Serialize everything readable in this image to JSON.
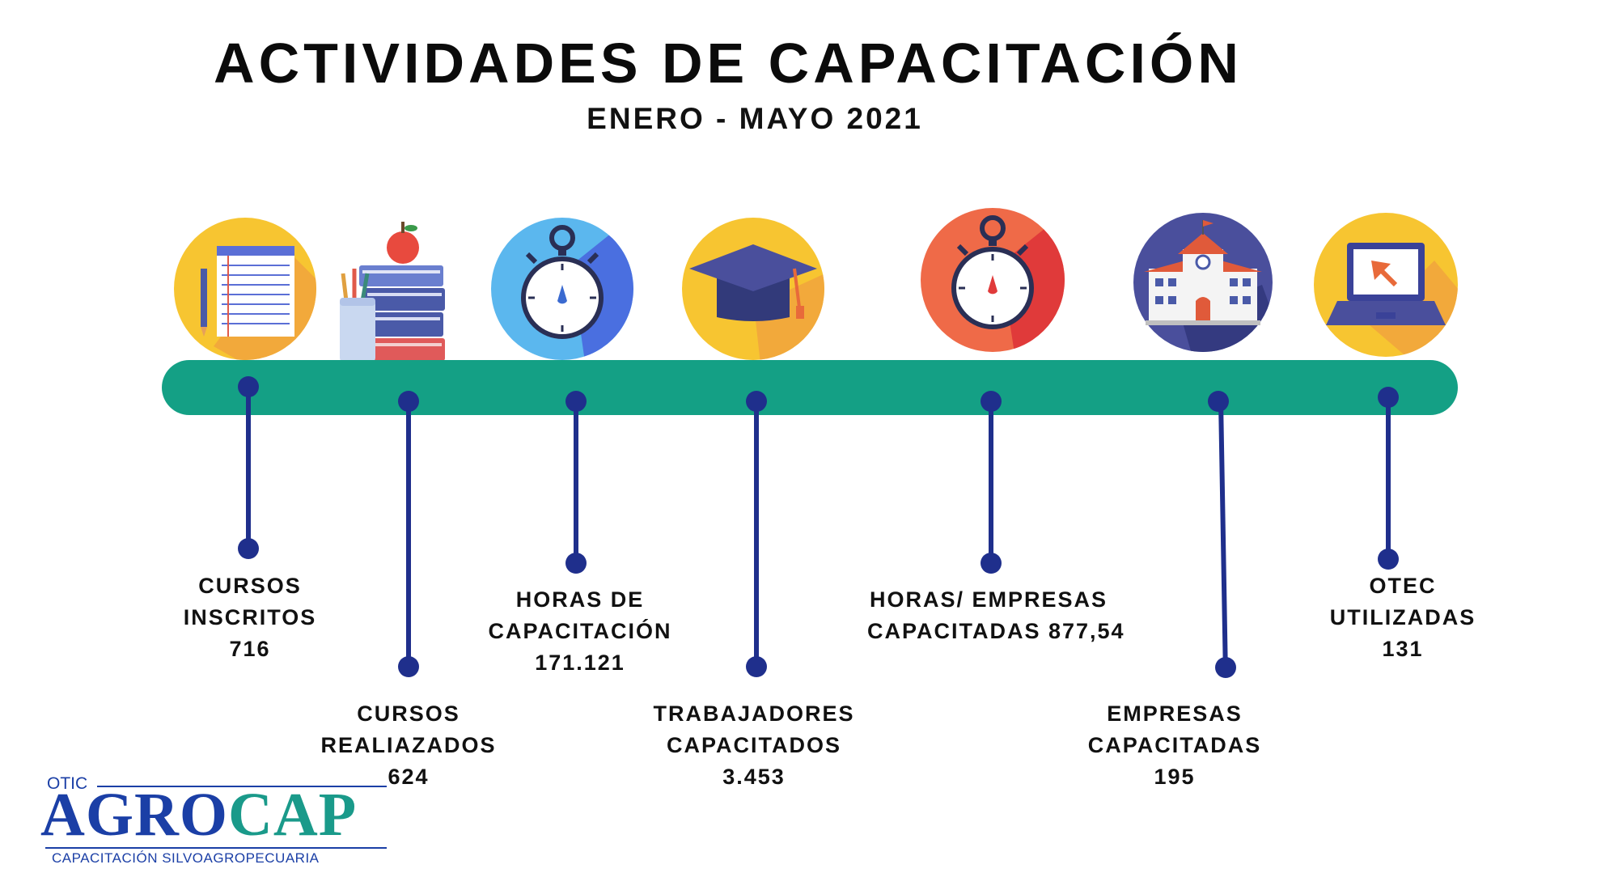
{
  "title": "ACTIVIDADES DE CAPACITACIÓN",
  "subtitle": "ENERO - MAYO 2021",
  "colors": {
    "timeline_bar": "#14a085",
    "connector": "#1f2f8c",
    "circle_yellow": "#f7c531",
    "circle_blue": "#5bb7ee",
    "circle_red": "#ef5a48",
    "circle_navy": "#4a4f9c"
  },
  "items": [
    {
      "lines": [
        "CURSOS",
        "INSCRITOS",
        "716"
      ],
      "icon": "notepad-icon"
    },
    {
      "lines": [
        "CURSOS",
        "REALIAZADOS",
        "624"
      ],
      "icon": "books-apple-icon"
    },
    {
      "lines": [
        "HORAS DE",
        "CAPACITACIÓN",
        "171.121"
      ],
      "icon": "stopwatch-icon"
    },
    {
      "lines": [
        "TRABAJADORES",
        "CAPACITADOS",
        "3.453"
      ],
      "icon": "graduation-cap-icon"
    },
    {
      "lines": [
        "HORAS/ EMPRESAS",
        "CAPACITADAS 877,54"
      ],
      "icon": "stopwatch-icon"
    },
    {
      "lines": [
        "EMPRESAS",
        "CAPACITADAS",
        "195"
      ],
      "icon": "school-building-icon"
    },
    {
      "lines": [
        "OTEC",
        "UTILIZADAS",
        "131"
      ],
      "icon": "laptop-icon"
    }
  ],
  "logo": {
    "prefix": "OTIC",
    "brand_part1": "AGRO",
    "brand_part2": "CAP",
    "brand_color1": "#1b3fa6",
    "brand_color2": "#1a9a8a",
    "tagline": "CAPACITACIÓN SILVOAGROPECUARIA"
  }
}
